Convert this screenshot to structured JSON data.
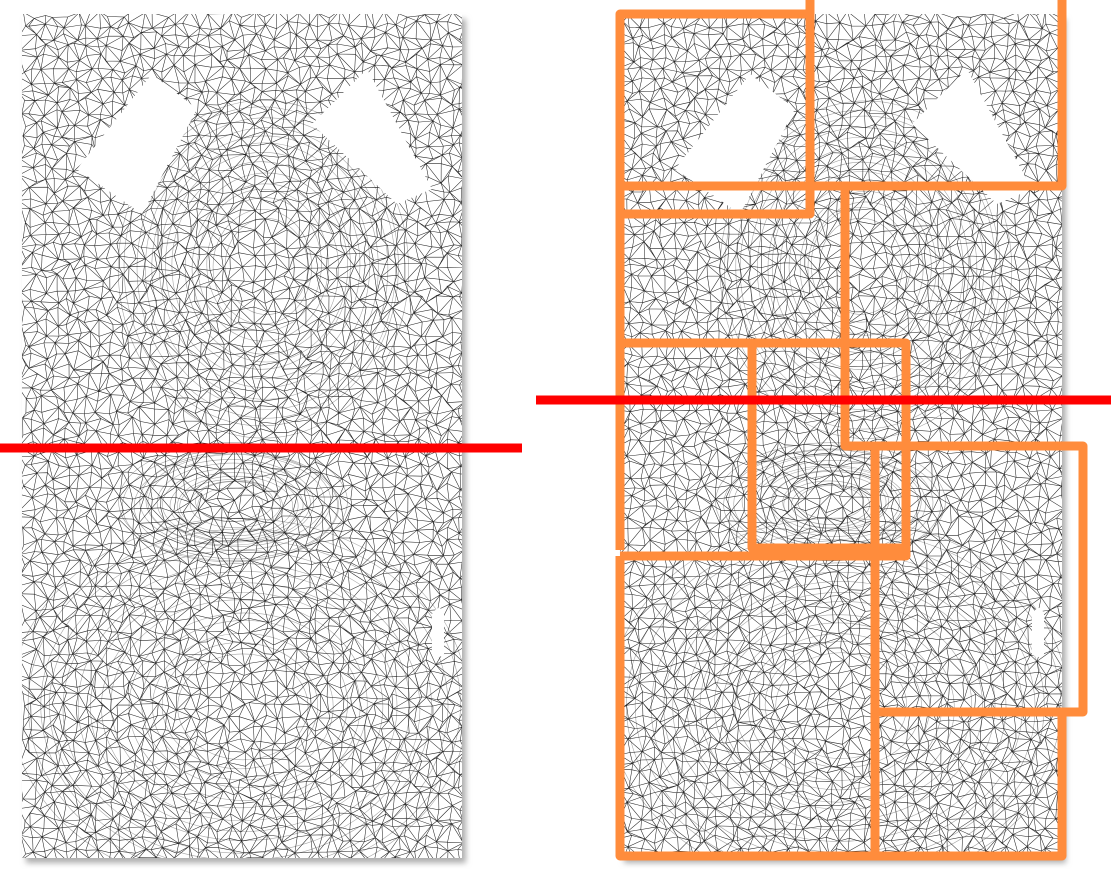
{
  "colors": {
    "background": "#ffffff",
    "mesh_stroke": "#000000",
    "cut_line": "#ff0000",
    "bounding_box": "#ff8c3c",
    "shadow": "#bdbdbd"
  },
  "panels": [
    {
      "name": "left-panel",
      "description_icon": "triangle-mesh-icon"
    },
    {
      "name": "right-panel",
      "description_icon": "triangle-mesh-icon"
    }
  ]
}
